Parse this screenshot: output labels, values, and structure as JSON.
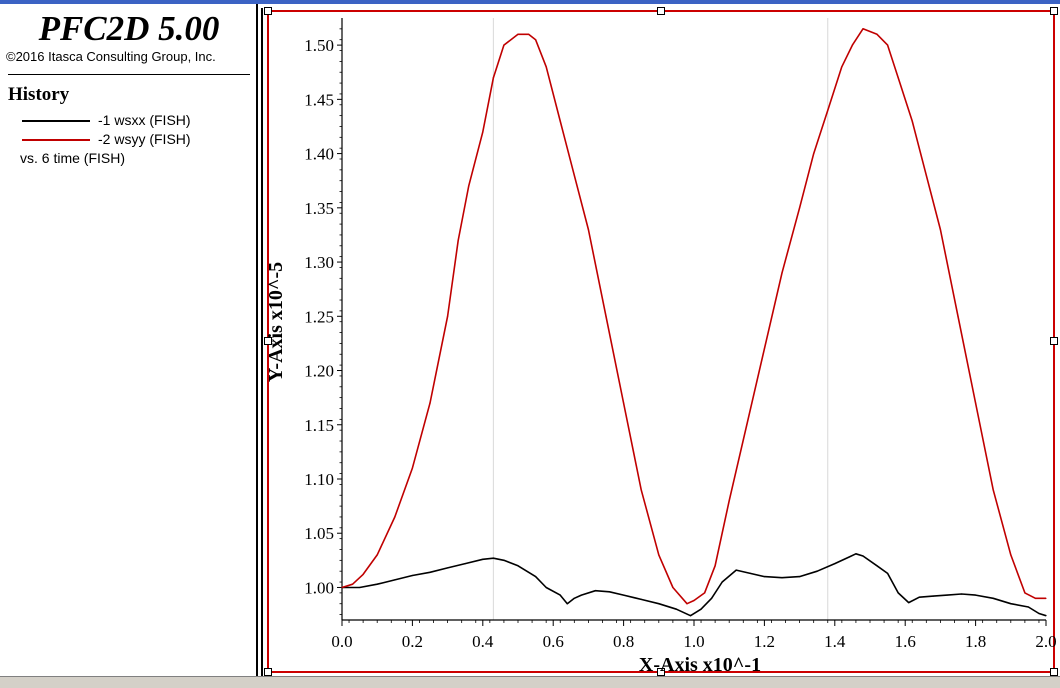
{
  "app": {
    "title": "PFC2D 5.00",
    "copyright": "©2016 Itasca Consulting Group, Inc."
  },
  "legend": {
    "heading": "History",
    "entries": [
      {
        "label": "-1 wsxx (FISH)",
        "color": "#000000"
      },
      {
        "label": "-2 wsyy (FISH)",
        "color": "#c00000"
      }
    ],
    "vs_label": "vs. 6 time (FISH)"
  },
  "colors": {
    "frame": "#cc0000",
    "grid": "#d8d8d8",
    "axis": "#000000",
    "titlebar": "#3b63c4"
  },
  "chart_data": {
    "type": "line",
    "title": "",
    "xlabel": "X-Axis x10^-1",
    "ylabel": "Y-Axis x10^-5",
    "xlim": [
      0.0,
      2.0
    ],
    "ylim": [
      0.97,
      1.525
    ],
    "xticks": [
      "0.0",
      "0.2",
      "0.4",
      "0.6",
      "0.8",
      "1.0",
      "1.2",
      "1.4",
      "1.6",
      "1.8",
      "2.0"
    ],
    "yticks": [
      "1.00",
      "1.05",
      "1.10",
      "1.15",
      "1.20",
      "1.25",
      "1.30",
      "1.35",
      "1.40",
      "1.45",
      "1.50"
    ],
    "grid": "vertical lines at x=0.43 and x=1.38",
    "legend_position": "left panel",
    "series": [
      {
        "name": "-1 wsxx (FISH)",
        "color": "#000000",
        "x": [
          0.0,
          0.05,
          0.1,
          0.15,
          0.2,
          0.25,
          0.3,
          0.35,
          0.4,
          0.43,
          0.46,
          0.5,
          0.55,
          0.58,
          0.62,
          0.64,
          0.66,
          0.68,
          0.72,
          0.76,
          0.8,
          0.85,
          0.9,
          0.95,
          0.99,
          1.02,
          1.05,
          1.08,
          1.12,
          1.16,
          1.2,
          1.25,
          1.3,
          1.35,
          1.4,
          1.44,
          1.46,
          1.48,
          1.52,
          1.55,
          1.58,
          1.61,
          1.64,
          1.68,
          1.72,
          1.76,
          1.8,
          1.85,
          1.9,
          1.95,
          1.98,
          2.0
        ],
        "y": [
          1.0,
          1.0,
          1.003,
          1.007,
          1.011,
          1.014,
          1.018,
          1.022,
          1.026,
          1.027,
          1.025,
          1.02,
          1.01,
          1.0,
          0.993,
          0.985,
          0.99,
          0.993,
          0.997,
          0.996,
          0.993,
          0.989,
          0.985,
          0.98,
          0.974,
          0.98,
          0.99,
          1.005,
          1.016,
          1.013,
          1.01,
          1.009,
          1.01,
          1.015,
          1.022,
          1.028,
          1.031,
          1.029,
          1.02,
          1.013,
          0.995,
          0.986,
          0.991,
          0.992,
          0.993,
          0.994,
          0.993,
          0.99,
          0.985,
          0.982,
          0.976,
          0.974
        ]
      },
      {
        "name": "-2 wsyy (FISH)",
        "color": "#c00000",
        "x": [
          0.0,
          0.03,
          0.06,
          0.1,
          0.15,
          0.2,
          0.25,
          0.3,
          0.33,
          0.36,
          0.4,
          0.43,
          0.46,
          0.5,
          0.53,
          0.55,
          0.58,
          0.62,
          0.66,
          0.7,
          0.75,
          0.8,
          0.85,
          0.9,
          0.94,
          0.98,
          1.0,
          1.03,
          1.06,
          1.1,
          1.15,
          1.2,
          1.25,
          1.3,
          1.34,
          1.38,
          1.42,
          1.45,
          1.48,
          1.52,
          1.55,
          1.58,
          1.62,
          1.66,
          1.7,
          1.75,
          1.8,
          1.85,
          1.9,
          1.94,
          1.97,
          2.0
        ],
        "y": [
          1.0,
          1.003,
          1.012,
          1.03,
          1.065,
          1.11,
          1.17,
          1.25,
          1.32,
          1.37,
          1.42,
          1.47,
          1.5,
          1.51,
          1.51,
          1.505,
          1.48,
          1.43,
          1.38,
          1.33,
          1.25,
          1.17,
          1.09,
          1.03,
          1.0,
          0.985,
          0.988,
          0.995,
          1.02,
          1.08,
          1.15,
          1.22,
          1.29,
          1.35,
          1.4,
          1.44,
          1.48,
          1.5,
          1.515,
          1.51,
          1.5,
          1.47,
          1.43,
          1.38,
          1.33,
          1.25,
          1.17,
          1.09,
          1.03,
          0.995,
          0.99,
          0.99
        ]
      }
    ]
  }
}
